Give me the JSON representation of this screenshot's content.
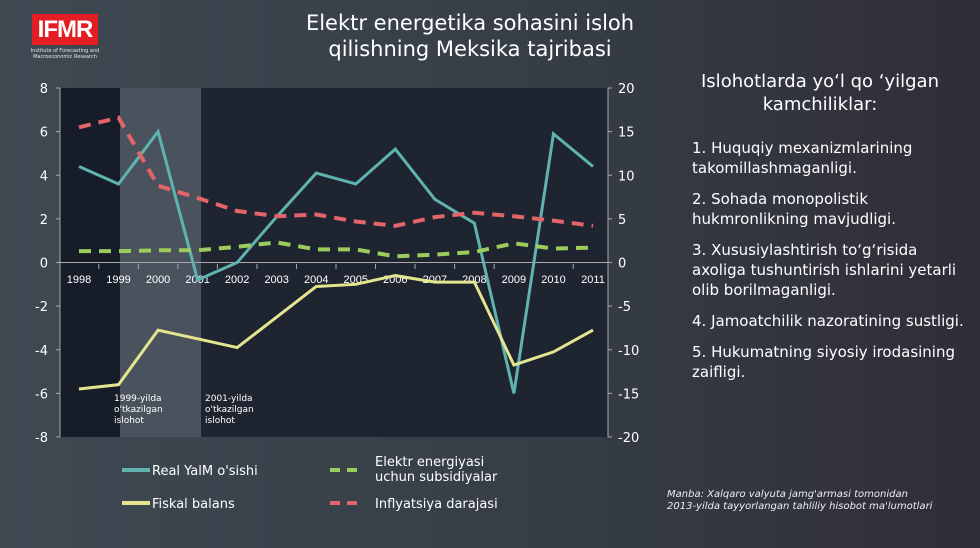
{
  "logo": {
    "text": "IFMR",
    "subtitle": "Institute of Forecasting and Macroeconomic Research"
  },
  "title": "Elektr energetika sohasini isloh qilishning Meksika tajribasi",
  "right_panel": {
    "title": "Islohotlarda yo‘l qo ‘yilgan kamchiliklar:",
    "items": [
      "1. Huquqiy mexanizmlarining takomillashmaganligi.",
      "2. Sohada monopolistik hukmronlikning mavjudligi.",
      "3. Xususiylashtirish to‘g‘risida axoliga tushuntirish ishlarini yetarli olib borilmaganligi.",
      "4. Jamoatchilik nazoratining sustligi.",
      "5. Hukumatning siyosiy irodasining  zaifligi."
    ]
  },
  "source": [
    "Manba: Xalqaro valyuta jamg'armasi tomonidan",
    "2013-yilda tayyorlangan tahliliy hisobot ma'lumotlari"
  ],
  "chart_data": {
    "type": "line",
    "categories": [
      "1998",
      "1999",
      "2000",
      "2001",
      "2002",
      "2003",
      "2004",
      "2005",
      "2006",
      "2007",
      "2008",
      "2009",
      "2010",
      "2011"
    ],
    "ylim_left": [
      -8,
      8
    ],
    "yticks_left": [
      "8",
      "6",
      "4",
      "2",
      "0",
      "-2",
      "-4",
      "-6",
      "-8"
    ],
    "ylim_right": [
      -20,
      20
    ],
    "yticks_right": [
      "20",
      "15",
      "10",
      "5",
      "0",
      "-5",
      "-10",
      "-15",
      "-20"
    ],
    "series": [
      {
        "name": "Real YalM o'sishi",
        "axis": "left",
        "color": "#5fb3b0",
        "dash": false,
        "values": [
          4.4,
          3.6,
          6.0,
          -0.8,
          0.0,
          2.1,
          4.1,
          3.6,
          5.2,
          2.9,
          1.8,
          -6.0,
          5.9,
          4.4
        ]
      },
      {
        "name": "Fiskal balans",
        "axis": "left",
        "color": "#e3e68f",
        "dash": false,
        "values": [
          -5.8,
          -5.6,
          -3.1,
          -3.5,
          -3.9,
          -2.5,
          -1.1,
          -1.0,
          -0.6,
          -0.9,
          -0.9,
          -4.7,
          -4.1,
          -3.1
        ]
      },
      {
        "name": "Elektr energiyasi uchun subsidiyalar",
        "axis": "right",
        "color": "#9ccc5c",
        "dash": true,
        "values": [
          1.3,
          1.3,
          1.4,
          1.4,
          1.8,
          2.3,
          1.5,
          1.5,
          0.7,
          0.9,
          1.2,
          2.2,
          1.6,
          1.7
        ]
      },
      {
        "name": "Inflyatsiya darajasi",
        "axis": "right",
        "color": "#e36469",
        "dash": true,
        "values": [
          15.5,
          16.6,
          8.8,
          7.4,
          5.9,
          5.3,
          5.5,
          4.7,
          4.2,
          5.2,
          5.7,
          5.3,
          4.8,
          4.2
        ]
      }
    ],
    "annotations": [
      {
        "text": [
          "1999-yilda",
          "o'tkazilgan",
          "islohot"
        ]
      },
      {
        "text": [
          "2001-yilda",
          "o'tkazilgan",
          "islohot"
        ]
      }
    ]
  }
}
